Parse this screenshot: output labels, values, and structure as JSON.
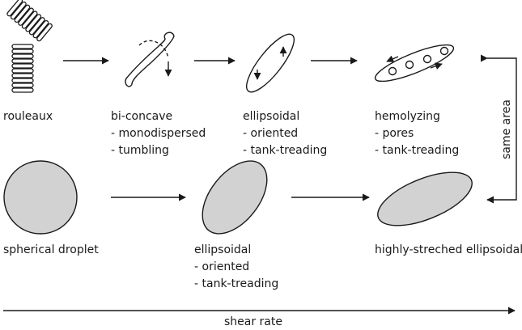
{
  "rows": {
    "top": [
      {
        "shape": "rouleaux-stack-icon",
        "lines": [
          "rouleaux"
        ]
      },
      {
        "shape": "bi-concave-cell-icon",
        "lines": [
          "bi-concave",
          "- monodispersed",
          "- tumbling"
        ]
      },
      {
        "shape": "ellipsoidal-cell-icon",
        "lines": [
          "ellipsoidal",
          "- oriented",
          "- tank-treading"
        ]
      },
      {
        "shape": "hemolyzing-cell-icon",
        "lines": [
          "hemolyzing",
          "- pores",
          "- tank-treading"
        ]
      }
    ],
    "bottom": [
      {
        "shape": "spherical-droplet-icon",
        "lines": [
          "spherical droplet"
        ]
      },
      {
        "shape": "ellipsoidal-droplet-icon",
        "lines": [
          "ellipsoidal",
          "- oriented",
          "- tank-treading"
        ]
      },
      {
        "shape": "stretched-ellipsoid-icon",
        "lines": [
          "highly-streched ellipsoidal"
        ]
      }
    ]
  },
  "same_area_label": "same area",
  "axis_label": "shear rate",
  "colors": {
    "stroke": "#1a1a1a",
    "droplet_fill": "#d2d2d2",
    "background": "#ffffff"
  }
}
